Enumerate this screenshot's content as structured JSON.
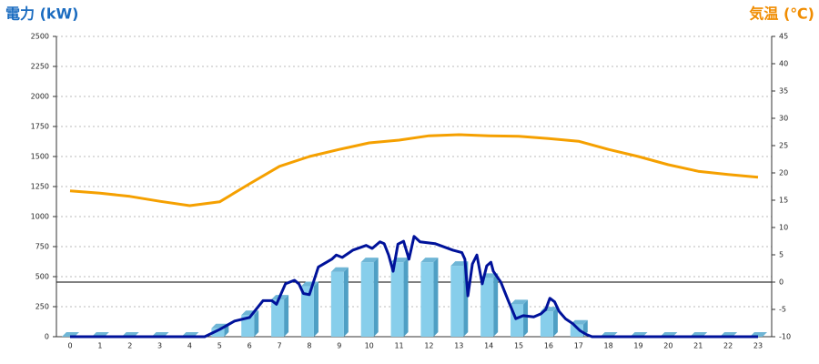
{
  "chart_data": {
    "type": "bar",
    "title": "電力 (kW)",
    "y2_title": "気温 (℃)",
    "categories": [
      "0",
      "1",
      "2",
      "3",
      "4",
      "5",
      "6",
      "7",
      "8",
      "9",
      "10",
      "11",
      "12",
      "13",
      "14",
      "15",
      "16",
      "17",
      "18",
      "19",
      "20",
      "21",
      "22",
      "23"
    ],
    "ylim": [
      0,
      2500
    ],
    "yticks": [
      0,
      250,
      500,
      750,
      1000,
      1250,
      1500,
      1750,
      2000,
      2250,
      2500
    ],
    "y2lim": [
      -10,
      45
    ],
    "y2ticks": [
      -10,
      -5,
      0,
      5,
      10,
      15,
      20,
      25,
      30,
      35,
      40,
      45
    ],
    "grid": true,
    "series": [
      {
        "type": "bar",
        "color": "#87ceeb",
        "values": [
          0,
          0,
          0,
          0,
          0,
          70,
          180,
          310,
          420,
          540,
          620,
          620,
          620,
          590,
          490,
          270,
          210,
          100,
          0,
          0,
          0,
          0,
          0,
          0
        ]
      },
      {
        "type": "line",
        "color": "#00129a",
        "x": [
          0,
          4.5,
          5,
          5.5,
          6,
          6.45,
          6.75,
          6.9,
          7.2,
          7.5,
          7.65,
          7.8,
          8.0,
          8.3,
          8.75,
          8.9,
          9.1,
          9.45,
          9.9,
          10.1,
          10.36,
          10.5,
          10.65,
          10.8,
          10.96,
          11.15,
          11.33,
          11.5,
          11.7,
          12.2,
          12.8,
          13.1,
          13.2,
          13.3,
          13.45,
          13.6,
          13.78,
          13.93,
          14.07,
          14.15,
          14.3,
          14.4,
          14.65,
          14.9,
          15.15,
          15.5,
          15.74,
          15.9,
          16.04,
          16.2,
          16.35,
          16.56,
          16.8,
          17.05,
          17.25,
          17.45,
          23
        ],
        "values": [
          0,
          0,
          60,
          130,
          160,
          300,
          300,
          270,
          440,
          470,
          440,
          360,
          350,
          580,
          645,
          680,
          660,
          720,
          760,
          735,
          790,
          775,
          680,
          545,
          770,
          795,
          645,
          835,
          790,
          775,
          720,
          700,
          645,
          340,
          605,
          680,
          440,
          590,
          620,
          545,
          490,
          455,
          300,
          150,
          175,
          165,
          190,
          225,
          320,
          290,
          210,
          150,
          110,
          50,
          20,
          0,
          0
        ]
      },
      {
        "type": "line",
        "axis": "y2",
        "color": "#f5a000",
        "values": [
          16.7,
          16.3,
          15.7,
          14.8,
          14,
          14.7,
          18,
          21.2,
          23,
          24.3,
          25.5,
          26,
          26.8,
          27,
          26.8,
          26.7,
          26.3,
          25.8,
          24.3,
          23,
          21.5,
          20.3,
          19.7,
          19.2
        ]
      }
    ]
  }
}
